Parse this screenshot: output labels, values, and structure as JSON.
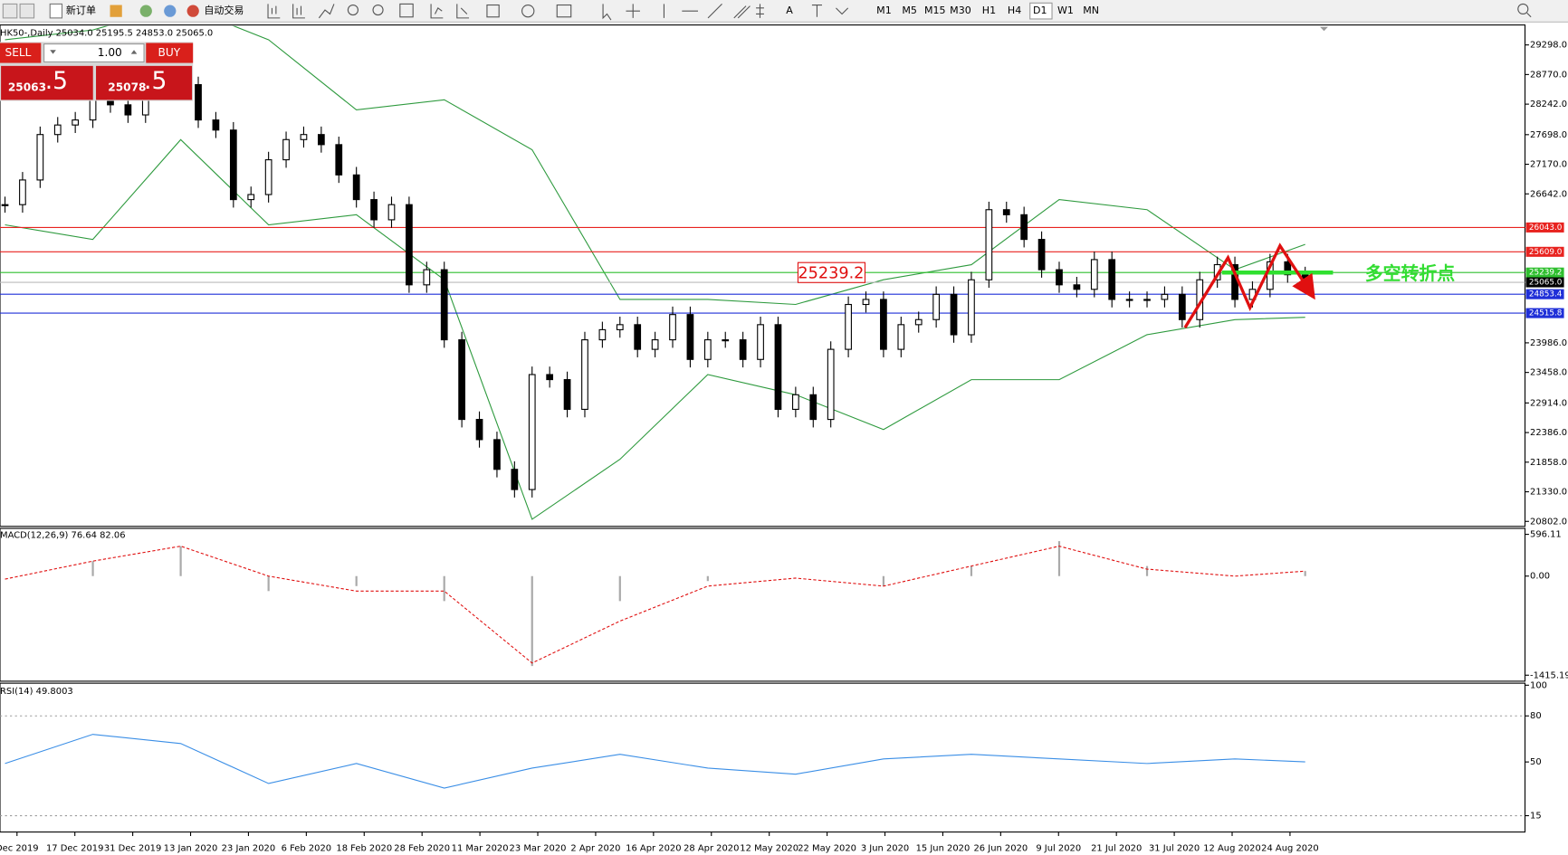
{
  "toolbar": {
    "new_order": "新订单",
    "auto_trading": "自动交易",
    "timeframes": [
      "M1",
      "M5",
      "M15",
      "M30",
      "H1",
      "H4",
      "D1",
      "W1",
      "MN"
    ]
  },
  "chart_info": "HK50-,Daily  25034.0 25195.5 24853.0 25065.0",
  "one_click": {
    "sell": "SELL",
    "buy": "BUY",
    "lots": "1.00",
    "bid_big": "25063",
    "bid_small": ".5",
    "ask_big": "25078",
    "ask_small": ".5"
  },
  "price": {
    "ylim": [
      20713,
      29636
    ],
    "yticks": [
      {
        "value": 29298,
        "label": "29298.0"
      },
      {
        "value": 28770,
        "label": "28770.0"
      },
      {
        "value": 28242,
        "label": "28242.0"
      },
      {
        "value": 27698,
        "label": "27698.0"
      },
      {
        "value": 27170,
        "label": "27170.0"
      },
      {
        "value": 26642,
        "label": "26642.0"
      },
      {
        "value": 23986,
        "label": "23986.0"
      },
      {
        "value": 23458,
        "label": "23458.0"
      },
      {
        "value": 22914,
        "label": "22914.0"
      },
      {
        "value": 22386,
        "label": "22386.0"
      },
      {
        "value": 21858,
        "label": "21858.0"
      },
      {
        "value": 21330,
        "label": "21330.0"
      },
      {
        "value": 20802,
        "label": "20802.0"
      }
    ],
    "closes": [
      26450,
      26890,
      27700,
      27870,
      27960,
      28320,
      28230,
      28050,
      28590,
      28940,
      28590,
      27960,
      27780,
      26540,
      26630,
      27250,
      27610,
      27700,
      27520,
      26980,
      26540,
      26180,
      26450,
      25020,
      25290,
      24040,
      22620,
      22260,
      21730,
      21370,
      23420,
      23330,
      22800,
      24040,
      24220,
      24310,
      23870,
      24040,
      24490,
      23690,
      24040,
      24040,
      23690,
      24310,
      22800,
      23060,
      22620,
      23870,
      24670,
      24760,
      23870,
      24310,
      24400,
      24850,
      24130,
      25110,
      26360,
      26270,
      25830,
      25290,
      25020,
      24940,
      25470,
      24760,
      24760,
      24760,
      24850,
      24400,
      25110,
      25380,
      24760,
      24940,
      25430,
      25200,
      25065
    ],
    "bands": {
      "index": [
        0,
        5,
        10,
        15,
        20,
        25,
        30,
        35,
        40,
        45,
        50,
        55,
        60,
        65,
        70,
        74
      ],
      "upper": [
        29390,
        29565,
        30010,
        29390,
        28140,
        28320,
        27430,
        24760,
        24760,
        24670,
        25110,
        25380,
        26540,
        26360,
        25290,
        25740
      ],
      "lower": [
        26090,
        25830,
        27610,
        26090,
        26270,
        25110,
        20840,
        21910,
        23420,
        23060,
        22440,
        23330,
        23330,
        24130,
        24400,
        24440
      ]
    },
    "levels": [
      {
        "value": 26043,
        "label": "26043.0",
        "color": "#e8231f"
      },
      {
        "value": 25609,
        "label": "25609.0",
        "color": "#e8231f"
      },
      {
        "value": 25239.2,
        "label": "25239.2",
        "color": "#2fbf2f"
      },
      {
        "value": 24853.4,
        "label": "24853.4",
        "color": "#1f2fd8"
      },
      {
        "value": 24515.8,
        "label": "24515.8",
        "color": "#1f2fd8"
      }
    ],
    "current": {
      "value": 25065,
      "label": "25065.0"
    },
    "annotation": {
      "value": 25239.2,
      "label": "25239.2"
    },
    "note": "多空转折点"
  },
  "dates": [
    "Dec 2019",
    "17 Dec 2019",
    "31 Dec 2019",
    "13 Jan 2020",
    "23 Jan 2020",
    "6 Feb 2020",
    "18 Feb 2020",
    "28 Feb 2020",
    "11 Mar 2020",
    "23 Mar 2020",
    "2 Apr 2020",
    "16 Apr 2020",
    "28 Apr 2020",
    "12 May 2020",
    "22 May 2020",
    "3 Jun 2020",
    "15 Jun 2020",
    "26 Jun 2020",
    "9 Jul 2020",
    "21 Jul 2020",
    "31 Jul 2020",
    "12 Aug 2020",
    "24 Aug 2020"
  ],
  "macd": {
    "label": "MACD(12,26,9) 76.64 82.06",
    "ylim": [
      -1501,
      667
    ],
    "yticks": [
      596.11,
      {
        "value": 0,
        "label": "0.00"
      },
      -1415.19
    ],
    "index": [
      0,
      5,
      10,
      15,
      20,
      25,
      30,
      35,
      40,
      45,
      50,
      55,
      60,
      65,
      70,
      74
    ],
    "histogram": [
      0,
      214,
      428,
      -214,
      -143,
      -357,
      -1284,
      -357,
      -71,
      0,
      -143,
      143,
      499,
      143,
      0,
      71
    ],
    "signal": [
      -43,
      214,
      428,
      0,
      -214,
      -214,
      -1241,
      -642,
      -143,
      -29,
      -143,
      143,
      428,
      100,
      0,
      71
    ]
  },
  "rsi": {
    "label": "RSI(14) 49.8003",
    "ylim": [
      5,
      100
    ],
    "yticks": [
      100,
      80,
      50,
      15
    ],
    "levels": [
      80,
      15
    ],
    "index": [
      0,
      5,
      10,
      15,
      20,
      25,
      30,
      35,
      40,
      45,
      50,
      55,
      60,
      65,
      70,
      74
    ],
    "values": [
      49,
      68,
      62,
      36,
      49,
      33,
      46,
      55,
      46,
      42,
      52,
      55,
      52,
      49,
      52,
      50
    ]
  }
}
